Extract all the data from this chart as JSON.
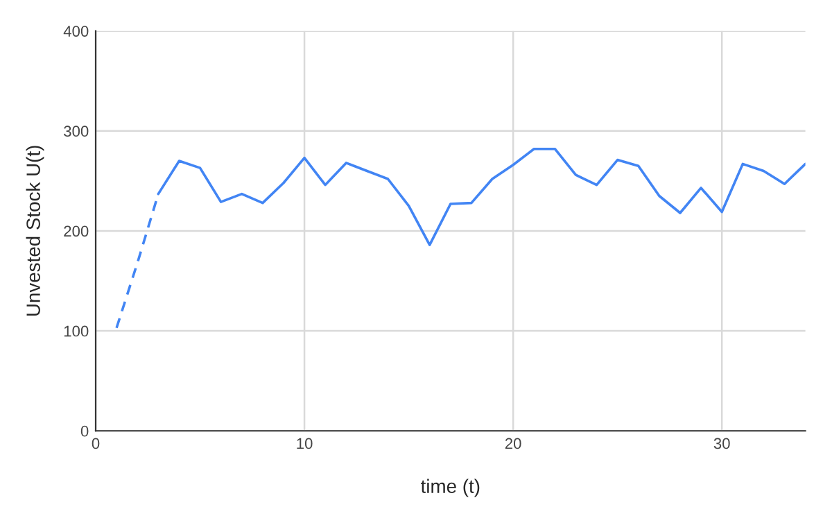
{
  "chart_data": {
    "type": "line",
    "xlabel": "time (t)",
    "ylabel": "Unvested Stock U(t)",
    "xlim": [
      0,
      34
    ],
    "ylim": [
      0,
      400
    ],
    "xticks": [
      0,
      10,
      20,
      30
    ],
    "yticks": [
      0,
      100,
      200,
      300,
      400
    ],
    "grid": true,
    "marker": "none",
    "series": [
      {
        "color": "#4285f4",
        "line_style": "dashed",
        "x": [
          1,
          2,
          3
        ],
        "values": [
          103,
          168,
          237
        ]
      },
      {
        "color": "#4285f4",
        "line_style": "solid",
        "x": [
          3,
          4,
          5,
          6,
          7,
          8,
          9,
          10,
          11,
          12,
          13,
          14,
          15,
          16,
          17,
          18,
          19,
          20,
          21,
          22,
          23,
          24,
          25,
          26,
          27,
          28,
          29,
          30,
          31,
          32,
          33,
          34
        ],
        "values": [
          237,
          270,
          263,
          229,
          237,
          228,
          248,
          273,
          246,
          268,
          260,
          252,
          225,
          186,
          227,
          228,
          252,
          266,
          282,
          282,
          256,
          246,
          271,
          265,
          235,
          218,
          243,
          219,
          267,
          260,
          247,
          267
        ]
      }
    ]
  }
}
